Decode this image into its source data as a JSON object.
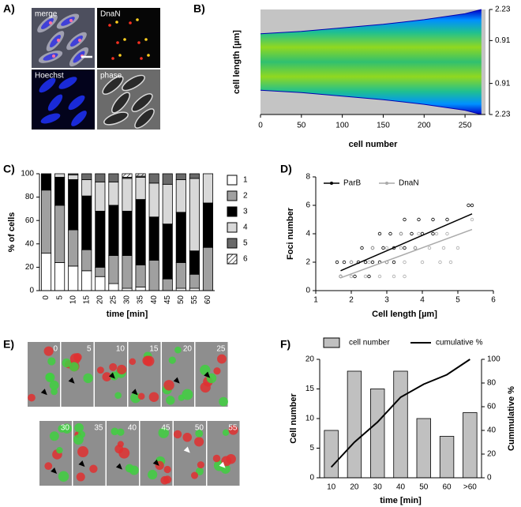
{
  "chart_data": [
    {
      "type": "image-grid",
      "panel": "A)",
      "labels": [
        "merge",
        "DnaN",
        "Hoechst",
        "phase"
      ]
    },
    {
      "type": "demograph",
      "panel": "B)",
      "x_label": "cell number",
      "y_label": "cell length [µm]",
      "x": [
        0,
        50,
        100,
        150,
        200,
        250,
        270
      ],
      "values": [
        1.2,
        1.3,
        1.45,
        1.6,
        1.8,
        2.05,
        2.23
      ],
      "xlim": [
        0,
        275
      ],
      "xticks": [
        0,
        50,
        100,
        150,
        200,
        250
      ],
      "ylim": [
        -2.23,
        2.23
      ],
      "yticks": [
        2.23,
        0.91,
        {
          "value": -0.91,
          "label": "0.91"
        },
        {
          "value": -2.23,
          "label": "2.23"
        }
      ]
    },
    {
      "type": "bar",
      "stacked": true,
      "panel": "C)",
      "x_label": "time [min]",
      "y_label": "% of cells",
      "categories": [
        "0",
        "5",
        "10",
        "15",
        "20",
        "25",
        "30",
        "35",
        "40",
        "45",
        "50",
        "55",
        "60"
      ],
      "series": [
        {
          "name": "1",
          "color": "#ffffff",
          "values": [
            32,
            24,
            21,
            17,
            12,
            6,
            2,
            3,
            0,
            0,
            2,
            2,
            0
          ]
        },
        {
          "name": "2",
          "color": "#a0a0a0",
          "values": [
            54,
            49,
            31,
            18,
            8,
            24,
            28,
            19,
            26,
            10,
            22,
            12,
            37
          ]
        },
        {
          "name": "3",
          "color": "#000000",
          "values": [
            14,
            24,
            43,
            46,
            48,
            43,
            38,
            56,
            37,
            47,
            43,
            20,
            38
          ]
        },
        {
          "name": "4",
          "color": "#d8d8d8",
          "values": [
            0,
            3,
            4,
            14,
            25,
            20,
            28,
            19,
            29,
            34,
            28,
            62,
            25
          ]
        },
        {
          "name": "5",
          "color": "#6a6a6a",
          "values": [
            0,
            0,
            1,
            5,
            7,
            7,
            1,
            1,
            8,
            9,
            5,
            4,
            0
          ]
        },
        {
          "name": "6",
          "color": "#ffffff",
          "hatch": true,
          "values": [
            0,
            0,
            0,
            0,
            0,
            0,
            3,
            2,
            0,
            0,
            0,
            0,
            0
          ]
        }
      ],
      "ylim": [
        0,
        100
      ],
      "yticks": [
        0,
        20,
        40,
        60,
        80,
        100
      ]
    },
    {
      "type": "scatter",
      "panel": "D)",
      "x_label": "Cell length [µm]",
      "y_label": "Foci number",
      "series": [
        {
          "name": "ParB",
          "color": "#000000",
          "x": [
            1.6,
            1.8,
            2.0,
            2.2,
            2.4,
            2.6,
            2.8,
            3.0,
            3.2,
            2.3,
            2.6,
            2.9,
            3.2,
            3.5,
            3.8,
            2.8,
            3.1,
            3.4,
            3.7,
            4.0,
            4.3,
            3.5,
            3.9,
            4.3,
            4.7,
            1.7,
            2.1,
            2.5,
            5.3,
            5.4
          ],
          "values": [
            2,
            2,
            2,
            2,
            2,
            2,
            2,
            2,
            2,
            3,
            3,
            3,
            3,
            3,
            3,
            4,
            4,
            4,
            4,
            4,
            4,
            5,
            5,
            5,
            5,
            1,
            1,
            1,
            6,
            6
          ],
          "fit_x": [
            1.7,
            5.4
          ],
          "fit_values": [
            1.4,
            5.4
          ]
        },
        {
          "name": "DnaN",
          "color": "#aaaaaa",
          "x": [
            1.7,
            2.0,
            2.4,
            2.8,
            3.2,
            3.5,
            2.0,
            2.5,
            3.0,
            3.5,
            4.0,
            4.5,
            4.8,
            2.6,
            3.0,
            3.4,
            3.8,
            4.2,
            4.6,
            5.0,
            3.4,
            3.9,
            4.4,
            4.7,
            5.4
          ],
          "values": [
            1,
            1,
            1,
            1,
            1,
            1,
            2,
            2,
            2,
            2,
            2,
            2,
            2,
            3,
            3,
            3,
            3,
            3,
            3,
            3,
            4,
            4,
            4,
            4,
            5
          ],
          "fit_x": [
            1.7,
            5.4
          ],
          "fit_values": [
            0.9,
            4.3
          ]
        }
      ],
      "xlim": [
        1,
        6
      ],
      "xticks": [
        1,
        2,
        3,
        4,
        5,
        6
      ],
      "ylim": [
        0,
        8
      ],
      "yticks": [
        0,
        2,
        4,
        6,
        8
      ],
      "legend": "top-left"
    },
    {
      "type": "image-grid",
      "panel": "E)",
      "labels": [
        "0",
        "5",
        "10",
        "15",
        "20",
        "25",
        "30",
        "35",
        "40",
        "45",
        "50",
        "55"
      ]
    },
    {
      "type": "bar",
      "panel": "F)",
      "x_label": "time [min]",
      "y_label": "Cell number",
      "y2_label": "Cummulative %",
      "categories": [
        "10",
        "20",
        "30",
        "40",
        "50",
        "60",
        ">60"
      ],
      "series": [
        {
          "name": "cell number",
          "color": "#c0c0c0",
          "values": [
            8,
            18,
            15,
            18,
            10,
            7,
            11
          ]
        },
        {
          "name": "cumulative %",
          "color": "#000000",
          "axis": "y2",
          "values": [
            9,
            30,
            47,
            68,
            79,
            87,
            100
          ]
        }
      ],
      "ylim": [
        0,
        20
      ],
      "yticks": [
        0,
        5,
        10,
        15,
        20
      ],
      "y2lim": [
        0,
        100
      ],
      "y2ticks": [
        0,
        20,
        40,
        60,
        80,
        100
      ],
      "legend": "top"
    }
  ]
}
